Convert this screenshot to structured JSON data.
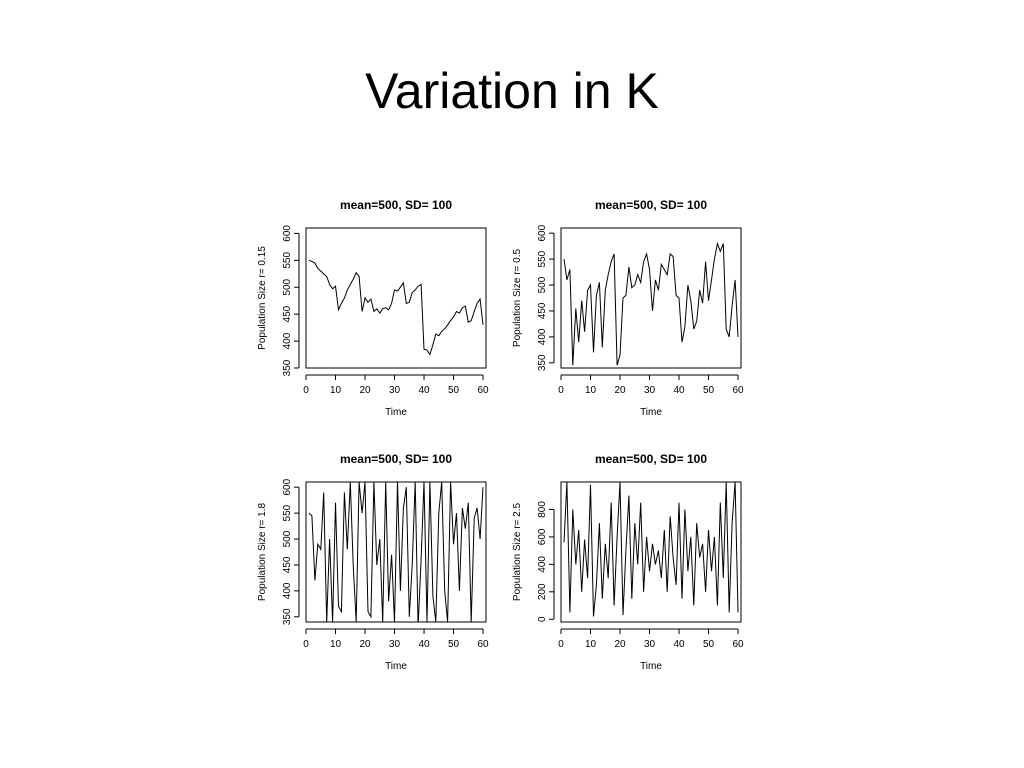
{
  "slide": {
    "title": "Variation in K"
  },
  "colors": {
    "line": "#000000",
    "axis": "#000000",
    "background": "#ffffff"
  },
  "chart_data": [
    {
      "type": "line",
      "title": "mean=500, SD= 100",
      "xlabel": "Time",
      "ylabel": "Population Size r= 0.15",
      "xlim": [
        0,
        61
      ],
      "ylim": [
        350,
        610
      ],
      "xticks": [
        "0",
        "10",
        "20",
        "30",
        "40",
        "50",
        "60"
      ],
      "yticks": [
        "350",
        "400",
        "450",
        "500",
        "550",
        "600"
      ],
      "x": [
        1,
        2,
        3,
        4,
        5,
        6,
        7,
        8,
        9,
        10,
        11,
        12,
        13,
        14,
        15,
        16,
        17,
        18,
        19,
        20,
        21,
        22,
        23,
        24,
        25,
        26,
        27,
        28,
        29,
        30,
        31,
        32,
        33,
        34,
        35,
        36,
        37,
        38,
        39,
        40,
        41,
        42,
        43,
        44,
        45,
        46,
        47,
        48,
        49,
        50,
        51,
        52,
        53,
        54,
        55,
        56,
        57,
        58,
        59,
        60
      ],
      "values": [
        550,
        548,
        545,
        535,
        530,
        525,
        520,
        505,
        497,
        502,
        458,
        470,
        480,
        495,
        505,
        515,
        527,
        520,
        455,
        480,
        472,
        478,
        455,
        460,
        452,
        460,
        462,
        458,
        470,
        495,
        493,
        500,
        508,
        470,
        472,
        490,
        495,
        502,
        505,
        385,
        383,
        375,
        393,
        413,
        410,
        418,
        423,
        430,
        438,
        445,
        455,
        452,
        462,
        465,
        435,
        438,
        455,
        470,
        478,
        430
      ]
    },
    {
      "type": "line",
      "title": "mean=500, SD= 100",
      "xlabel": "Time",
      "ylabel": "Population Size r= 0.5",
      "xlim": [
        0,
        61
      ],
      "ylim": [
        340,
        610
      ],
      "xticks": [
        "0",
        "10",
        "20",
        "30",
        "40",
        "50",
        "60"
      ],
      "yticks": [
        "350",
        "400",
        "450",
        "500",
        "550",
        "600"
      ],
      "x": [
        1,
        2,
        3,
        4,
        5,
        6,
        7,
        8,
        9,
        10,
        11,
        12,
        13,
        14,
        15,
        16,
        17,
        18,
        19,
        20,
        21,
        22,
        23,
        24,
        25,
        26,
        27,
        28,
        29,
        30,
        31,
        32,
        33,
        34,
        35,
        36,
        37,
        38,
        39,
        40,
        41,
        42,
        43,
        44,
        45,
        46,
        47,
        48,
        49,
        50,
        51,
        52,
        53,
        54,
        55,
        56,
        57,
        58,
        59,
        60
      ],
      "values": [
        550,
        510,
        530,
        345,
        455,
        390,
        470,
        410,
        490,
        500,
        370,
        480,
        505,
        380,
        490,
        520,
        545,
        560,
        345,
        365,
        475,
        480,
        535,
        495,
        500,
        520,
        505,
        545,
        560,
        530,
        450,
        510,
        490,
        540,
        530,
        520,
        560,
        555,
        480,
        475,
        390,
        420,
        500,
        470,
        415,
        430,
        490,
        465,
        545,
        470,
        510,
        550,
        580,
        565,
        580,
        415,
        400,
        460,
        510,
        400
      ]
    },
    {
      "type": "line",
      "title": "mean=500, SD= 100",
      "xlabel": "Time",
      "ylabel": "Population Size r= 1.8",
      "xlim": [
        0,
        61
      ],
      "ylim": [
        340,
        610
      ],
      "xticks": [
        "0",
        "10",
        "20",
        "30",
        "40",
        "50",
        "60"
      ],
      "yticks": [
        "350",
        "400",
        "450",
        "500",
        "550",
        "600"
      ],
      "x": [
        1,
        2,
        3,
        4,
        5,
        6,
        7,
        8,
        9,
        10,
        11,
        12,
        13,
        14,
        15,
        16,
        17,
        18,
        19,
        20,
        21,
        22,
        23,
        24,
        25,
        26,
        27,
        28,
        29,
        30,
        31,
        32,
        33,
        34,
        35,
        36,
        37,
        38,
        39,
        40,
        41,
        42,
        43,
        44,
        45,
        46,
        47,
        48,
        49,
        50,
        51,
        52,
        53,
        54,
        55,
        56,
        57,
        58,
        59,
        60
      ],
      "values": [
        550,
        545,
        420,
        490,
        480,
        590,
        340,
        500,
        340,
        570,
        370,
        360,
        590,
        480,
        610,
        450,
        340,
        610,
        550,
        610,
        360,
        350,
        610,
        450,
        500,
        340,
        610,
        380,
        470,
        340,
        610,
        400,
        560,
        600,
        350,
        450,
        610,
        330,
        460,
        610,
        340,
        610,
        390,
        340,
        550,
        610,
        400,
        340,
        610,
        490,
        550,
        400,
        560,
        520,
        570,
        340,
        540,
        560,
        500,
        600
      ]
    },
    {
      "type": "line",
      "title": "mean=500, SD= 100",
      "xlabel": "Time",
      "ylabel": "Population Size r= 2.5",
      "xlim": [
        0,
        61
      ],
      "ylim": [
        -20,
        1000
      ],
      "xticks": [
        "0",
        "10",
        "20",
        "30",
        "40",
        "50",
        "60"
      ],
      "yticks": [
        "0",
        "200",
        "400",
        "600",
        "800"
      ],
      "x": [
        1,
        2,
        3,
        4,
        5,
        6,
        7,
        8,
        9,
        10,
        11,
        12,
        13,
        14,
        15,
        16,
        17,
        18,
        19,
        20,
        21,
        22,
        23,
        24,
        25,
        26,
        27,
        28,
        29,
        30,
        31,
        32,
        33,
        34,
        35,
        36,
        37,
        38,
        39,
        40,
        41,
        42,
        43,
        44,
        45,
        46,
        47,
        48,
        49,
        50,
        51,
        52,
        53,
        54,
        55,
        56,
        57,
        58,
        59,
        60
      ],
      "values": [
        560,
        1000,
        50,
        800,
        400,
        650,
        200,
        580,
        300,
        980,
        20,
        250,
        700,
        150,
        550,
        300,
        850,
        100,
        600,
        1000,
        30,
        500,
        900,
        150,
        700,
        400,
        850,
        200,
        600,
        350,
        550,
        400,
        500,
        300,
        650,
        200,
        750,
        450,
        250,
        850,
        150,
        800,
        350,
        600,
        100,
        700,
        450,
        550,
        200,
        650,
        350,
        600,
        100,
        850,
        300,
        1000,
        50,
        700,
        1000,
        50
      ]
    }
  ]
}
